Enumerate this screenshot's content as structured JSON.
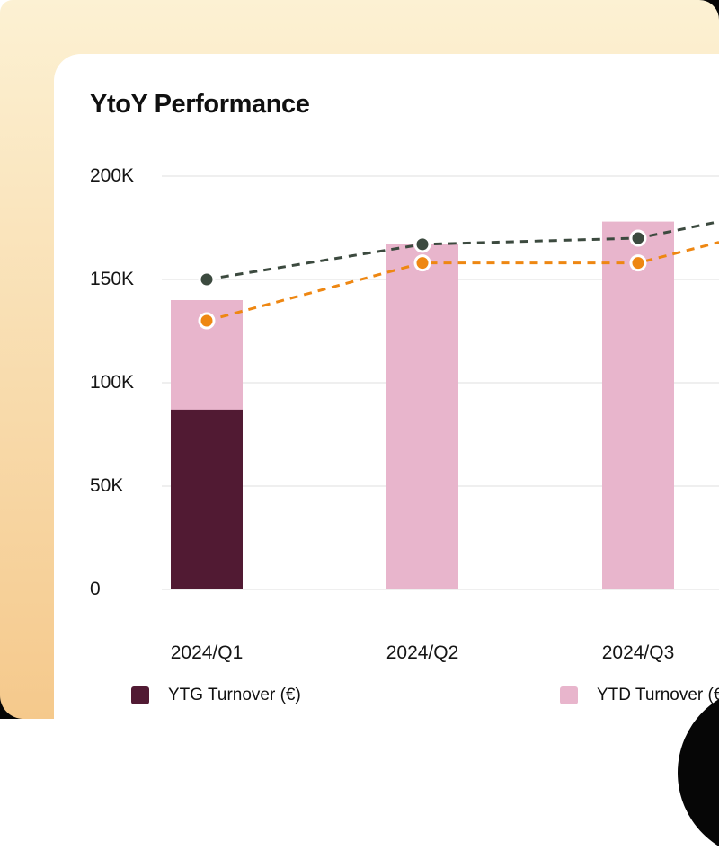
{
  "chart_data": {
    "type": "bar+line",
    "title": "YtoY Performance",
    "categories": [
      "2024/Q1",
      "2024/Q2",
      "2024/Q3"
    ],
    "y_axis": {
      "tick_labels": [
        "200K",
        "150K",
        "100K",
        "50K",
        "0"
      ],
      "tick_values": [
        200,
        150,
        100,
        50,
        0
      ],
      "ylim": [
        0,
        200
      ],
      "unit": "K"
    },
    "grid": "horizontal-only",
    "bars": {
      "ytd_label": "YTD Turnover (€)",
      "totals": [
        140,
        167,
        178
      ],
      "ytg_label": "YTG Turnover (€)",
      "ytg_segments": [
        87,
        0,
        0
      ]
    },
    "series": [
      {
        "id": "dark-dashed-line",
        "color": "#3C4A3F",
        "values": [
          150,
          167,
          170
        ],
        "edge_exit_value": 178
      },
      {
        "id": "orange-dashed-line",
        "color": "#EE8712",
        "values": [
          130,
          158,
          158
        ],
        "edge_exit_value": 168
      }
    ],
    "legend": [
      {
        "label": "YTG Turnover (€)",
        "color": "#511A33"
      },
      {
        "label": "YTD Turnover (€)",
        "color": "#E8B5CC"
      }
    ],
    "legend_position": "bottom",
    "colors": {
      "background_gradient_top": "#FCF1D3",
      "background_gradient_bottom": "#F5C98C",
      "card": "#FFFFFF",
      "ytg_maroon": "#511A33",
      "ytd_pink": "#E8B5CC",
      "gridline": "#EFEFEF",
      "dot_ring": "#FFFFFF",
      "corner_black": "#060606",
      "text": "#101010"
    }
  }
}
